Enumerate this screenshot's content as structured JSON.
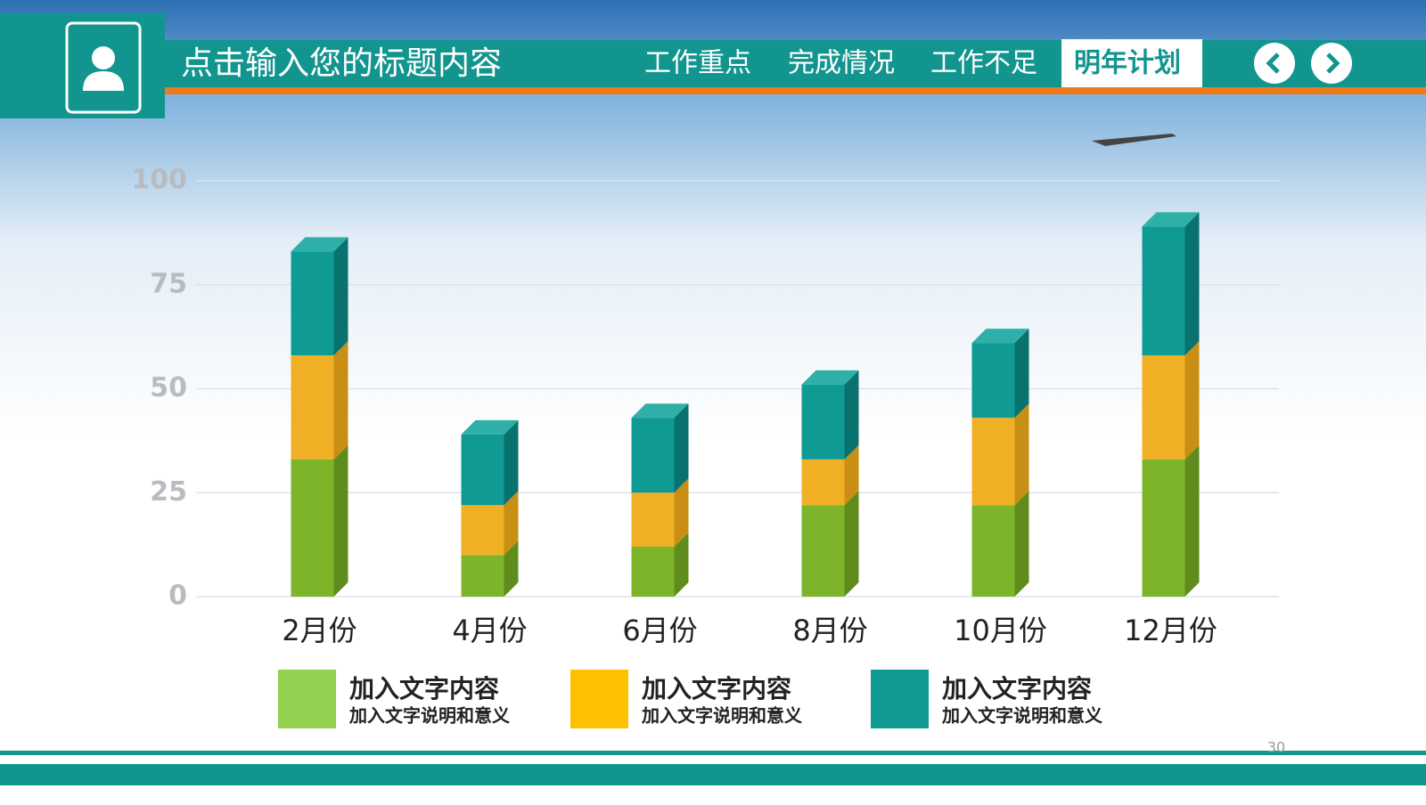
{
  "header": {
    "title": "点击输入您的标题内容",
    "tabs": [
      "工作重点",
      "完成情况",
      "工作不足",
      "明年计划"
    ],
    "active_tab": 3
  },
  "page_number": "30",
  "chart_data": {
    "type": "bar3d_stacked",
    "categories": [
      "2月份",
      "4月份",
      "6月份",
      "8月份",
      "10月份",
      "12月份"
    ],
    "series": [
      {
        "name": "加入文字内容",
        "description": "加入文字说明和意义",
        "color": "#7db42a",
        "side": "#5f8c1c",
        "legend_color": "#92d050",
        "values": [
          33,
          10,
          12,
          22,
          22,
          33
        ]
      },
      {
        "name": "加入文字内容",
        "description": "加入文字说明和意义",
        "color": "#f0b025",
        "side": "#c98e14",
        "legend_color": "#ffc000",
        "values": [
          25,
          12,
          13,
          11,
          21,
          25
        ]
      },
      {
        "name": "加入文字内容",
        "description": "加入文字说明和意义",
        "color": "#0f9a94",
        "side": "#0a726e",
        "legend_color": "#0f9a94",
        "values": [
          25,
          17,
          18,
          18,
          18,
          31
        ]
      }
    ],
    "ylim": [
      0,
      100
    ],
    "yticks": [
      0,
      25,
      50,
      75,
      100
    ],
    "grid": true
  }
}
